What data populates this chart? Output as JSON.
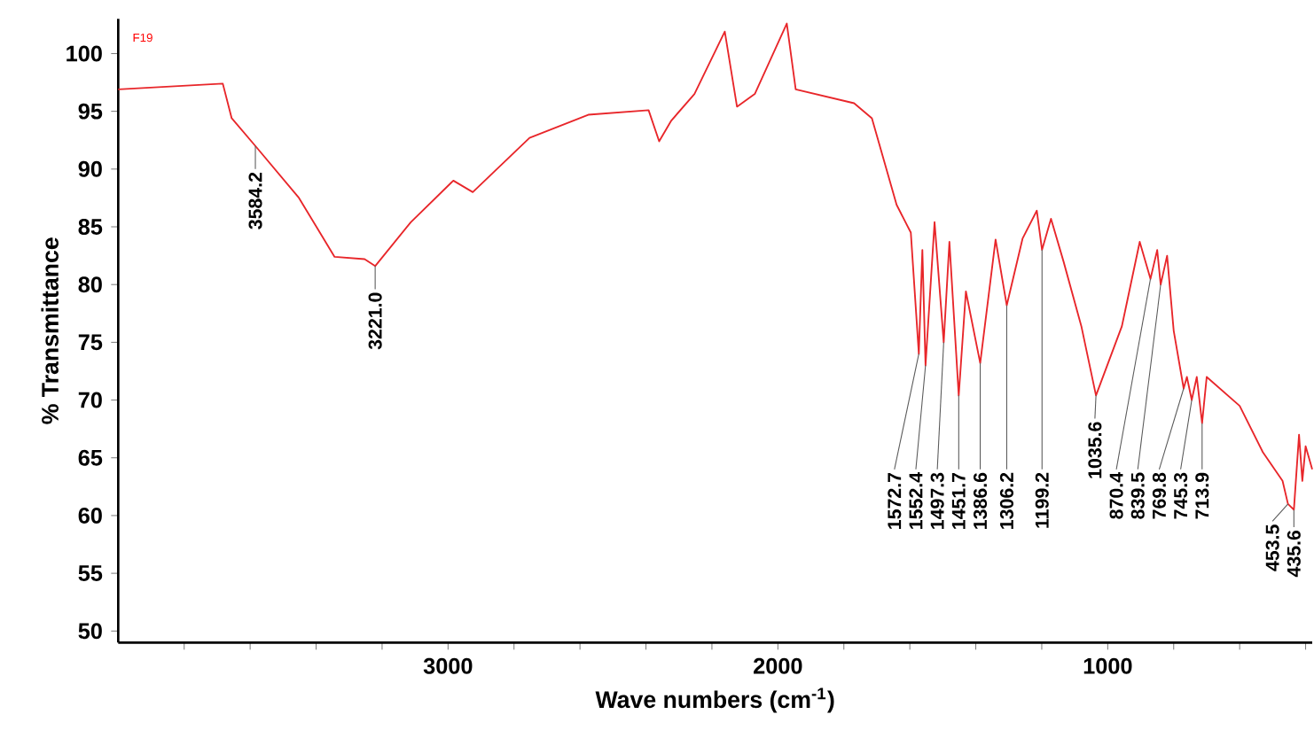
{
  "chart_data": {
    "type": "line",
    "xlabel": "Wave numbers (cm$^{-1}$)",
    "ylabel": "% Transmittance",
    "xlim": [
      4000,
      380
    ],
    "ylim": [
      49,
      103
    ],
    "xticks": [
      {
        "value": 3800,
        "label": null
      },
      {
        "value": 3600,
        "label": null
      },
      {
        "value": 3400,
        "label": null
      },
      {
        "value": 3200,
        "label": null
      },
      3000,
      {
        "value": 2800,
        "label": null
      },
      {
        "value": 2600,
        "label": null
      },
      {
        "value": 2400,
        "label": null
      },
      {
        "value": 2200,
        "label": null
      },
      2000,
      {
        "value": 1800,
        "label": null
      },
      {
        "value": 1600,
        "label": null
      },
      {
        "value": 1400,
        "label": null
      },
      {
        "value": 1200,
        "label": null
      },
      1000,
      {
        "value": 800,
        "label": null
      },
      {
        "value": 600,
        "label": null
      },
      {
        "value": 400,
        "label": null
      }
    ],
    "yticks": [
      50,
      55,
      60,
      65,
      70,
      75,
      80,
      85,
      90,
      95,
      100
    ],
    "marker": "none",
    "series": [
      {
        "color": "#e8262a",
        "x": [
          4000,
          3683,
          3656,
          3584.2,
          3452,
          3344,
          3253,
          3221.0,
          3113,
          2984,
          2925,
          2753,
          2575,
          2392,
          2360,
          2323,
          2253,
          2161,
          2124,
          2070,
          1973,
          1946,
          1769,
          1715,
          1640,
          1597,
          1572.7,
          1562,
          1552.4,
          1525,
          1497.3,
          1480,
          1451.7,
          1430,
          1386.6,
          1340,
          1306.2,
          1258,
          1215,
          1199.2,
          1172,
          1134,
          1080,
          1035.6,
          957,
          903,
          870.4,
          850,
          839.5,
          820,
          800,
          769.8,
          760,
          745.3,
          730,
          713.9,
          700,
          600,
          530,
          470,
          453.5,
          435.6,
          420,
          410,
          400,
          380
        ],
        "values": [
          96.9,
          97.4,
          94.4,
          92,
          87.5,
          82.4,
          82.2,
          81.6,
          85.4,
          89,
          88,
          92.7,
          94.7,
          95.1,
          92.4,
          94.2,
          96.5,
          101.9,
          95.4,
          96.5,
          102.6,
          96.9,
          95.7,
          94.4,
          86.9,
          84.5,
          74,
          83,
          73,
          85.4,
          75,
          83.7,
          70.4,
          79.4,
          73.2,
          83.9,
          78.2,
          84,
          86.4,
          83,
          85.7,
          82,
          76.4,
          70.4,
          76.4,
          83.7,
          80.5,
          83,
          80,
          82.5,
          76,
          71,
          72,
          70,
          72,
          68,
          72,
          69.5,
          65.5,
          63,
          61,
          60.5,
          67,
          63,
          66,
          64
        ]
      }
    ],
    "annotations": [
      "F19",
      {
        "text": "3584.2",
        "x": 3584.2,
        "y": 92
      },
      {
        "text": "3221.0",
        "x": 3221.0,
        "y": 81.6
      },
      {
        "text": "1572.7",
        "x": 1572.7,
        "y": 74
      },
      {
        "text": "1552.4",
        "x": 1552.4,
        "y": 73
      },
      {
        "text": "1497.3",
        "x": 1497.3,
        "y": 75
      },
      {
        "text": "1451.7",
        "x": 1451.7,
        "y": 70.4
      },
      {
        "text": "1386.6",
        "x": 1386.6,
        "y": 73.2
      },
      {
        "text": "1306.2",
        "x": 1306.2,
        "y": 78.2
      },
      {
        "text": "1199.2",
        "x": 1199.2,
        "y": 83
      },
      {
        "text": "1035.6",
        "x": 1035.6,
        "y": 70.4
      },
      {
        "text": "870.4",
        "x": 870.4,
        "y": 80.5
      },
      {
        "text": "839.5",
        "x": 839.5,
        "y": 80
      },
      {
        "text": "769.8",
        "x": 769.8,
        "y": 71
      },
      {
        "text": "745.3",
        "x": 745.3,
        "y": 70
      },
      {
        "text": "713.9",
        "x": 713.9,
        "y": 68
      },
      {
        "text": "453.5",
        "x": 453.5,
        "y": 61
      },
      {
        "text": "435.6",
        "x": 435.6,
        "y": 60.5
      }
    ]
  }
}
